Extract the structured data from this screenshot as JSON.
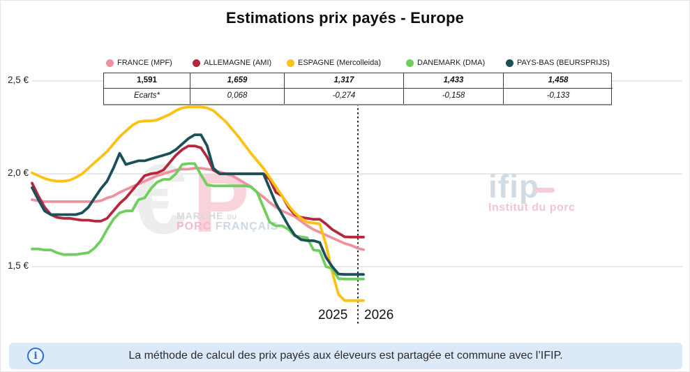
{
  "title": "Estimations prix payés - Europe",
  "legend": [
    {
      "label": "FRANCE (MPF)",
      "color": "#f0919f"
    },
    {
      "label": "ALLEMAGNE (AMI)",
      "color": "#b3283c"
    },
    {
      "label": "ESPAGNE (Mercolleida)",
      "color": "#fcc211"
    },
    {
      "label": "DANEMARK (DMA)",
      "color": "#6fce5e"
    },
    {
      "label": "PAYS-BAS (BEURSPRIJS)",
      "color": "#1b5058"
    }
  ],
  "table": {
    "values": [
      "1,591",
      "1,659",
      "1,317",
      "1,433",
      "1,458"
    ],
    "ecarts_label": "Ecarts*",
    "ecarts": [
      "0,068",
      "-0,274",
      "-0,158",
      "-0,133"
    ]
  },
  "axis": {
    "y_ticks": [
      "2,5 €",
      "2,0 €",
      "1,5 €"
    ],
    "x_labels": [
      "2025",
      "2026"
    ]
  },
  "watermarks": {
    "mpf": {
      "euro": "€",
      "p": "P",
      "line1_a": "MARCHÉ",
      "line1_b": "DU",
      "line2_a": "PORC",
      "line2_b": "FRANÇAIS"
    },
    "ifip": {
      "name": "ifip",
      "subtitle": "Institut du porc"
    }
  },
  "footer": {
    "text": "La méthode de calcul des prix payés aux éleveurs est partagée et commune avec l’IFIP."
  },
  "chart_data": {
    "type": "line",
    "title": "Estimations prix payés - Europe",
    "x_axis": {
      "labels": [
        "2025",
        "2026"
      ],
      "unit": "points hebdomadaires, année 2025 puis début 2026, séparés par une ligne verticale pointillée"
    },
    "y_axis": {
      "ticks": [
        2.5,
        2.0,
        1.5
      ],
      "tick_format": "x,x €",
      "min": 1.25,
      "max": 2.55
    },
    "grid": true,
    "legend_position": "top",
    "series": [
      {
        "name": "FRANCE (MPF)",
        "color": "#f0919f",
        "final_value": 1.591,
        "ecart": null,
        "values": [
          1.86,
          1.855,
          1.85,
          1.85,
          1.85,
          1.85,
          1.85,
          1.85,
          1.85,
          1.85,
          1.85,
          1.855,
          1.87,
          1.88,
          1.9,
          1.915,
          1.93,
          1.945,
          1.96,
          1.975,
          1.99,
          2.0,
          2.01,
          2.02,
          2.025,
          2.025,
          2.03,
          2.03,
          2.025,
          2.02,
          2.01,
          2.0,
          1.99,
          1.97,
          1.95,
          1.93,
          1.9,
          1.875,
          1.845,
          1.82,
          1.8,
          1.785,
          1.77,
          1.745,
          1.72,
          1.7,
          1.685,
          1.67,
          1.655,
          1.64,
          1.625,
          1.615,
          1.6,
          1.591
        ]
      },
      {
        "name": "ALLEMAGNE (AMI)",
        "color": "#b3283c",
        "final_value": 1.659,
        "ecart": 0.068,
        "values": [
          1.95,
          1.88,
          1.82,
          1.78,
          1.765,
          1.76,
          1.76,
          1.755,
          1.75,
          1.75,
          1.745,
          1.745,
          1.76,
          1.8,
          1.84,
          1.87,
          1.91,
          1.95,
          1.99,
          2.0,
          2.005,
          2.02,
          2.06,
          2.1,
          2.13,
          2.15,
          2.15,
          2.14,
          2.09,
          2.02,
          2.0,
          2.0,
          2.0,
          2.0,
          2.0,
          2.0,
          2.0,
          2.0,
          1.97,
          1.9,
          1.88,
          1.82,
          1.78,
          1.765,
          1.76,
          1.755,
          1.755,
          1.73,
          1.7,
          1.68,
          1.66,
          1.659,
          1.659,
          1.659
        ]
      },
      {
        "name": "ESPAGNE (Mercolleida)",
        "color": "#fcc211",
        "final_value": 1.317,
        "ecart": -0.274,
        "values": [
          2.005,
          1.99,
          1.975,
          1.965,
          1.96,
          1.96,
          1.965,
          1.98,
          2.0,
          2.03,
          2.06,
          2.09,
          2.12,
          2.16,
          2.2,
          2.23,
          2.26,
          2.28,
          2.285,
          2.285,
          2.29,
          2.305,
          2.32,
          2.34,
          2.355,
          2.36,
          2.36,
          2.36,
          2.355,
          2.34,
          2.31,
          2.28,
          2.24,
          2.2,
          2.155,
          2.11,
          2.07,
          2.03,
          1.98,
          1.93,
          1.88,
          1.83,
          1.79,
          1.76,
          1.74,
          1.735,
          1.73,
          1.62,
          1.47,
          1.35,
          1.317,
          1.317,
          1.317,
          1.317
        ]
      },
      {
        "name": "DANEMARK (DMA)",
        "color": "#6fce5e",
        "final_value": 1.433,
        "ecart": -0.158,
        "values": [
          1.595,
          1.595,
          1.59,
          1.59,
          1.575,
          1.565,
          1.565,
          1.565,
          1.57,
          1.575,
          1.6,
          1.64,
          1.7,
          1.755,
          1.79,
          1.8,
          1.8,
          1.86,
          1.87,
          1.92,
          1.955,
          1.97,
          1.97,
          2.0,
          2.05,
          2.055,
          2.055,
          1.995,
          1.94,
          1.935,
          1.935,
          1.935,
          1.935,
          1.935,
          1.935,
          1.93,
          1.9,
          1.82,
          1.74,
          1.72,
          1.72,
          1.7,
          1.665,
          1.66,
          1.655,
          1.59,
          1.585,
          1.5,
          1.49,
          1.435,
          1.433,
          1.433,
          1.433,
          1.433
        ]
      },
      {
        "name": "PAYS-BAS (BEURSPRIJS)",
        "color": "#1b5058",
        "final_value": 1.458,
        "ecart": -0.133,
        "values": [
          1.925,
          1.86,
          1.8,
          1.78,
          1.78,
          1.78,
          1.78,
          1.78,
          1.79,
          1.82,
          1.87,
          1.92,
          1.96,
          2.03,
          2.11,
          2.05,
          2.06,
          2.07,
          2.07,
          2.08,
          2.09,
          2.1,
          2.11,
          2.13,
          2.16,
          2.19,
          2.21,
          2.21,
          2.15,
          2.03,
          2.0,
          2.0,
          2.0,
          2.0,
          2.0,
          2.0,
          2.0,
          2.0,
          1.92,
          1.84,
          1.78,
          1.72,
          1.67,
          1.645,
          1.64,
          1.64,
          1.63,
          1.55,
          1.5,
          1.46,
          1.458,
          1.458,
          1.458,
          1.458
        ]
      }
    ]
  }
}
